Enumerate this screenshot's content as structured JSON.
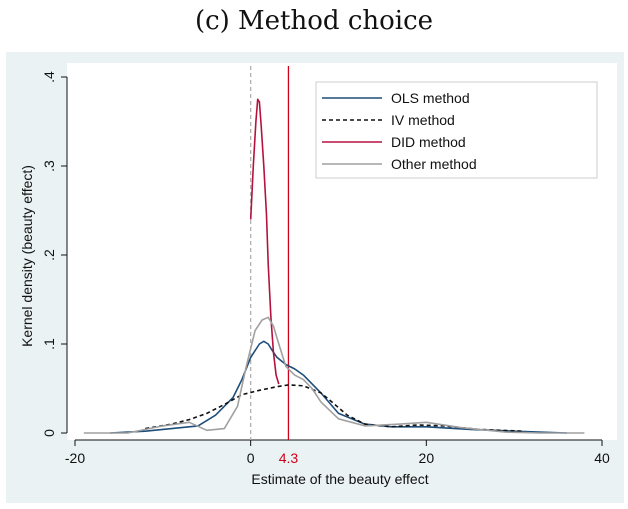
{
  "chart_data": {
    "type": "line",
    "title": "(c) Method choice",
    "xlabel": "Estimate of the beauty effect",
    "ylabel": "Kernel density (beauty effect)",
    "xlim": [
      -20,
      40
    ],
    "ylim": [
      0,
      0.4
    ],
    "x_ticks": [
      {
        "value": -20,
        "label": "-20"
      },
      {
        "value": 0,
        "label": "0"
      },
      {
        "value": 20,
        "label": "20"
      },
      {
        "value": 40,
        "label": "40"
      }
    ],
    "y_ticks": [
      {
        "value": 0,
        "label": "0"
      },
      {
        "value": 0.1,
        "label": ".1"
      },
      {
        "value": 0.2,
        "label": ".2"
      },
      {
        "value": 0.3,
        "label": ".3"
      },
      {
        "value": 0.4,
        "label": ".4"
      }
    ],
    "reference_lines": [
      {
        "axis": "x",
        "value": 0,
        "style": "dashed",
        "color": "#b0b0b0"
      },
      {
        "axis": "x",
        "value": 4.3,
        "style": "solid",
        "color": "#d0021b",
        "label": "4.3"
      }
    ],
    "legend_position": "top-right",
    "grid": false,
    "series": [
      {
        "name": "OLS method",
        "color": "#1f4e79",
        "dash": "solid",
        "x": [
          -16,
          -12,
          -9,
          -6,
          -4,
          -2,
          -1,
          0,
          1,
          1.5,
          2,
          2.5,
          3,
          4,
          5,
          6,
          8,
          10,
          13,
          16,
          20,
          25,
          30,
          36
        ],
        "y": [
          0.0,
          0.002,
          0.005,
          0.008,
          0.02,
          0.04,
          0.06,
          0.085,
          0.1,
          0.103,
          0.1,
          0.092,
          0.085,
          0.077,
          0.072,
          0.065,
          0.045,
          0.022,
          0.01,
          0.007,
          0.007,
          0.004,
          0.002,
          0.0
        ]
      },
      {
        "name": "IV method",
        "color": "#111111",
        "dash": "dashed",
        "x": [
          -12,
          -9,
          -7,
          -5,
          -3,
          -1,
          1,
          3,
          4.3,
          6,
          8,
          9,
          11,
          13,
          16,
          19,
          22,
          26,
          31
        ],
        "y": [
          0.005,
          0.01,
          0.015,
          0.022,
          0.032,
          0.043,
          0.048,
          0.052,
          0.054,
          0.053,
          0.045,
          0.037,
          0.02,
          0.01,
          0.007,
          0.009,
          0.008,
          0.004,
          0.002
        ]
      },
      {
        "name": "DID method",
        "color": "#b5123e",
        "dash": "solid",
        "x": [
          0,
          0.3,
          0.6,
          0.8,
          1.0,
          1.2,
          1.5,
          1.8,
          2.0,
          2.3,
          2.6,
          2.9,
          3.2
        ],
        "y": [
          0.24,
          0.3,
          0.35,
          0.375,
          0.372,
          0.345,
          0.3,
          0.245,
          0.19,
          0.13,
          0.09,
          0.065,
          0.055
        ]
      },
      {
        "name": "Other method",
        "color": "#a0a0a0",
        "dash": "solid",
        "x": [
          -19,
          -14,
          -10,
          -7,
          -5,
          -3,
          -1.5,
          -0.5,
          0.5,
          1.3,
          2,
          2.6,
          3.2,
          4,
          5,
          6,
          7,
          8,
          10,
          13,
          17,
          20,
          24,
          29,
          33,
          38
        ],
        "y": [
          0.0,
          0.0,
          0.008,
          0.012,
          0.003,
          0.005,
          0.03,
          0.075,
          0.115,
          0.127,
          0.13,
          0.12,
          0.1,
          0.075,
          0.065,
          0.06,
          0.05,
          0.035,
          0.016,
          0.008,
          0.01,
          0.012,
          0.006,
          0.001,
          0.0,
          0.0
        ]
      }
    ]
  }
}
